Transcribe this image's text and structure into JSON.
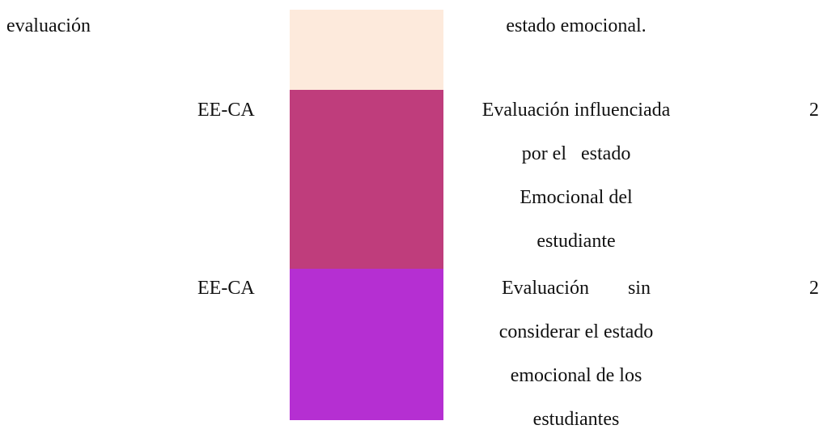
{
  "rows": [
    {
      "category": "evaluación",
      "code": null,
      "description": [
        "estado emocional."
      ],
      "count": null
    },
    {
      "category": null,
      "code": "EE-CA",
      "description": [
        "Evaluación influenciada",
        "por el   estado",
        "Emocional del",
        "estudiante"
      ],
      "count": "2"
    },
    {
      "category": null,
      "code": "EE-CA",
      "description": [
        "Evaluación        sin",
        "considerar el estado",
        "emocional de los",
        "estudiantes"
      ],
      "count": "2"
    }
  ]
}
